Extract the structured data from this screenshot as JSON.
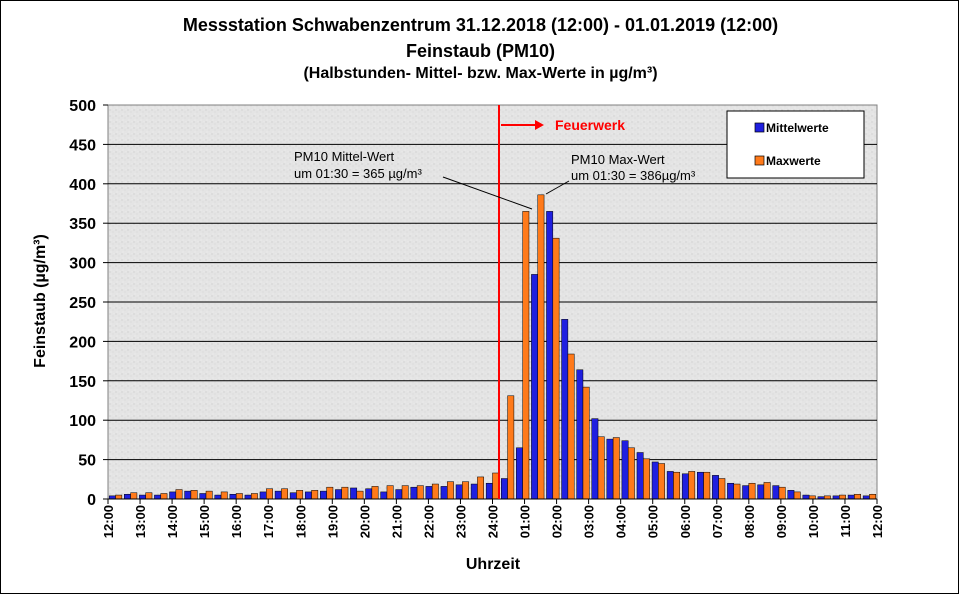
{
  "chart_data": {
    "type": "bar",
    "title": "Messstation Schwabenzentrum 31.12.2018 (12:00) - 01.01.2019 (12:00)",
    "subtitle": "Feinstaub (PM10)",
    "subtitle2": "(Halbstunden- Mittel- bzw. Max-Werte in µg/m³)",
    "xlabel": "Uhrzeit",
    "ylabel": "Feinstaub (µg/m³)",
    "ylim": [
      0,
      500
    ],
    "yticks": [
      0,
      50,
      100,
      150,
      200,
      250,
      300,
      350,
      400,
      450,
      500
    ],
    "xtick_labels": [
      "12:00",
      "13:00",
      "14:00",
      "15:00",
      "16:00",
      "17:00",
      "18:00",
      "19:00",
      "20:00",
      "21:00",
      "22:00",
      "23:00",
      "24:00",
      "01:00",
      "02:00",
      "03:00",
      "04:00",
      "05:00",
      "06:00",
      "07:00",
      "08:00",
      "09:00",
      "10:00",
      "11:00",
      "12:00"
    ],
    "grid": true,
    "legend_position": "top-right",
    "series": [
      {
        "name": "Mittelwerte",
        "color": "#1f1fe0",
        "values": [
          4,
          6,
          5,
          5,
          9,
          10,
          7,
          5,
          6,
          5,
          9,
          10,
          8,
          9,
          10,
          12,
          14,
          13,
          9,
          12,
          15,
          16,
          16,
          18,
          19,
          20,
          26,
          65,
          285,
          365,
          228,
          164,
          102,
          76,
          74,
          59,
          47,
          35,
          32,
          34,
          30,
          20,
          17,
          18,
          17,
          11,
          5,
          3,
          4,
          5,
          4
        ]
      },
      {
        "name": "Maxwerte",
        "color": "#ff7a1a",
        "values": [
          5,
          8,
          8,
          7,
          12,
          11,
          10,
          9,
          7,
          7,
          13,
          13,
          11,
          11,
          15,
          15,
          10,
          16,
          17,
          17,
          17,
          19,
          22,
          22,
          28,
          33,
          131,
          365,
          386,
          331,
          184,
          142,
          79,
          78,
          65,
          51,
          45,
          34,
          35,
          34,
          26,
          19,
          20,
          21,
          15,
          9,
          4,
          4,
          5,
          6,
          6
        ]
      }
    ],
    "annotations": {
      "event_label": "Feuerwerk",
      "event_color": "#ff0000",
      "mean_note_line1": "PM10 Mittel-Wert",
      "mean_note_line2": "um 01:30 = 365 µg/m³",
      "max_note_line1": "PM10 Max-Wert",
      "max_note_line2": "um 01:30 = 386µg/m³"
    }
  }
}
